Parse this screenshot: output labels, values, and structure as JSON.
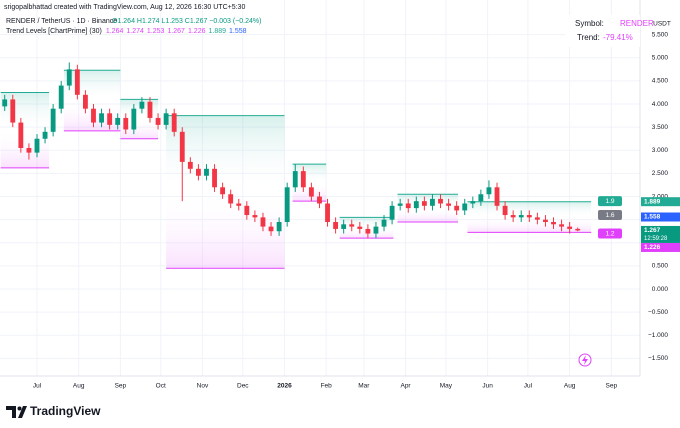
{
  "header": {
    "credit": "srigopalbhattad created with TradingView.com, Aug 12, 2026 16:30 UTC+5:30",
    "symbol_line": "RENDER / TetherUS · 1D · Binance",
    "ohlc_line": "O1.264 H1.274 L1.253 C1.267 −0.003 (−0.24%)",
    "indicator_name": "Trend Levels [ChartPrime] (30)",
    "indicator_values": [
      1.264,
      1.274,
      1.253,
      1.267,
      1.226,
      1.889,
      1.558
    ],
    "indicator_colors": [
      "#e040fb",
      "#e040fb",
      "#e040fb",
      "#e040fb",
      "#e040fb",
      "#22ab94",
      "#2962ff"
    ],
    "info_symbol_label": "Symbol:",
    "info_symbol": "RENDER",
    "info_trend_label": "Trend:",
    "info_trend": "-79.41%",
    "footer_brand": "TradingView"
  },
  "chart_data": {
    "type": "candlestick",
    "axis_unit": "USDT",
    "up_color": "#089981",
    "down_color": "#f23645",
    "grid": true,
    "xlim": [
      -27.5,
      448.3
    ],
    "xticks": [
      {
        "value": 0,
        "label": "Jul"
      },
      {
        "value": 31,
        "label": "Aug"
      },
      {
        "value": 62,
        "label": "Sep"
      },
      {
        "value": 92,
        "label": "Oct"
      },
      {
        "value": 123,
        "label": "Nov"
      },
      {
        "value": 153,
        "label": "Dec"
      },
      {
        "value": 184,
        "label": "2026"
      },
      {
        "value": 215,
        "label": "Feb"
      },
      {
        "value": 243,
        "label": "Mar"
      },
      {
        "value": 274,
        "label": "Apr"
      },
      {
        "value": 304,
        "label": "May"
      },
      {
        "value": 335,
        "label": "Jun"
      },
      {
        "value": 365,
        "label": "Jul"
      },
      {
        "value": 396,
        "label": "Aug"
      },
      {
        "value": 427,
        "label": "Sep"
      }
    ],
    "ylim": [
      -1.88,
      6.25
    ],
    "yticks": [
      {
        "value": 5.5,
        "label": "5.500"
      },
      {
        "value": 5,
        "label": "5.000"
      },
      {
        "value": 4.5,
        "label": "4.500"
      },
      {
        "value": 4,
        "label": "4.000"
      },
      {
        "value": 3.5,
        "label": "3.500"
      },
      {
        "value": 3,
        "label": "3.000"
      },
      {
        "value": 2.5,
        "label": "2.500"
      },
      {
        "value": 2,
        "label": "2.000"
      },
      {
        "value": 1.5,
        "label": "1.500"
      },
      {
        "value": 1,
        "label": "1.000"
      },
      {
        "value": 0.5,
        "label": "0.500"
      },
      {
        "value": 0,
        "label": "0.000"
      },
      {
        "value": -0.5,
        "label": "−0.500"
      },
      {
        "value": -1,
        "label": "−1.000"
      },
      {
        "value": -1.5,
        "label": "−1.500"
      }
    ],
    "x": [
      -24,
      -18,
      -12,
      -6,
      0,
      6,
      12,
      18,
      24,
      30,
      36,
      42,
      48,
      54,
      60,
      66,
      72,
      78,
      84,
      90,
      96,
      102,
      108,
      114,
      120,
      126,
      132,
      138,
      144,
      150,
      156,
      162,
      168,
      174,
      180,
      186,
      192,
      198,
      204,
      210,
      216,
      222,
      228,
      234,
      240,
      246,
      252,
      258,
      264,
      270,
      276,
      282,
      288,
      294,
      300,
      306,
      312,
      318,
      324,
      330,
      336,
      342,
      348,
      354,
      360,
      366,
      372,
      378,
      384,
      390,
      396,
      402
    ],
    "open": [
      3.95,
      4.1,
      3.6,
      3.05,
      2.95,
      3.25,
      3.4,
      3.9,
      4.4,
      4.75,
      4.2,
      3.9,
      3.6,
      3.8,
      3.55,
      3.7,
      3.45,
      3.9,
      4.05,
      3.7,
      3.55,
      3.8,
      3.4,
      2.75,
      2.6,
      2.45,
      2.6,
      2.2,
      2.05,
      1.85,
      1.8,
      1.6,
      1.55,
      1.35,
      1.25,
      1.45,
      2.2,
      2.55,
      2.2,
      2.0,
      1.85,
      1.45,
      1.3,
      1.4,
      1.35,
      1.3,
      1.2,
      1.35,
      1.5,
      1.8,
      1.85,
      1.75,
      1.9,
      1.8,
      1.95,
      1.85,
      1.8,
      1.7,
      1.85,
      1.9,
      2.05,
      2.2,
      1.8,
      1.6,
      1.55,
      1.6,
      1.55,
      1.5,
      1.45,
      1.4,
      1.35,
      1.3
    ],
    "high": [
      4.2,
      4.2,
      3.7,
      3.15,
      3.35,
      3.5,
      4.0,
      4.5,
      4.9,
      4.85,
      4.3,
      4.0,
      3.9,
      3.9,
      3.8,
      3.8,
      4.0,
      4.15,
      4.15,
      3.8,
      3.9,
      3.9,
      3.5,
      2.85,
      2.7,
      2.7,
      2.7,
      2.3,
      2.15,
      1.95,
      1.9,
      1.7,
      1.65,
      1.45,
      1.55,
      2.3,
      2.7,
      2.65,
      2.3,
      2.1,
      1.95,
      1.55,
      1.5,
      1.5,
      1.45,
      1.4,
      1.45,
      1.6,
      1.9,
      1.95,
      1.95,
      2.0,
      2.0,
      2.05,
      2.05,
      1.95,
      1.9,
      1.95,
      2.0,
      2.15,
      2.35,
      2.3,
      1.9,
      1.7,
      1.7,
      1.7,
      1.65,
      1.6,
      1.55,
      1.5,
      1.45,
      1.33
    ],
    "low": [
      3.85,
      3.5,
      2.95,
      2.8,
      2.85,
      3.15,
      3.3,
      3.8,
      4.3,
      4.1,
      3.8,
      3.5,
      3.5,
      3.45,
      3.45,
      3.35,
      3.35,
      3.8,
      3.6,
      3.45,
      3.45,
      3.3,
      1.9,
      2.5,
      2.35,
      2.35,
      2.1,
      1.95,
      1.75,
      1.7,
      1.5,
      1.45,
      1.25,
      1.15,
      1.15,
      1.35,
      2.1,
      2.1,
      1.9,
      1.75,
      1.35,
      1.2,
      1.2,
      1.25,
      1.2,
      1.1,
      1.1,
      1.25,
      1.4,
      1.7,
      1.65,
      1.65,
      1.7,
      1.7,
      1.75,
      1.7,
      1.6,
      1.6,
      1.75,
      1.8,
      1.95,
      1.7,
      1.5,
      1.45,
      1.45,
      1.45,
      1.4,
      1.35,
      1.3,
      1.25,
      1.2,
      1.25
    ],
    "close": [
      4.1,
      3.6,
      3.05,
      2.95,
      3.25,
      3.4,
      3.9,
      4.4,
      4.75,
      4.2,
      3.9,
      3.6,
      3.8,
      3.55,
      3.7,
      3.45,
      3.9,
      4.05,
      3.7,
      3.55,
      3.8,
      3.4,
      2.75,
      2.6,
      2.45,
      2.6,
      2.2,
      2.05,
      1.85,
      1.8,
      1.6,
      1.55,
      1.35,
      1.25,
      1.45,
      2.2,
      2.55,
      2.2,
      2.0,
      1.85,
      1.45,
      1.3,
      1.4,
      1.35,
      1.3,
      1.2,
      1.35,
      1.5,
      1.8,
      1.85,
      1.75,
      1.9,
      1.8,
      1.95,
      1.85,
      1.8,
      1.7,
      1.85,
      1.9,
      2.05,
      2.2,
      1.8,
      1.6,
      1.55,
      1.6,
      1.55,
      1.5,
      1.45,
      1.4,
      1.35,
      1.3,
      1.267
    ],
    "zones": [
      {
        "x": [
          -27,
          9
        ],
        "top": 4.25,
        "bottom": 2.62
      },
      {
        "x": [
          20,
          62
        ],
        "top": 4.73,
        "bottom": 3.42
      },
      {
        "x": [
          62,
          90
        ],
        "top": 4.1,
        "bottom": 3.25
      },
      {
        "x": [
          96,
          184
        ],
        "top": 3.75,
        "bottom": 0.45
      },
      {
        "x": [
          190,
          215
        ],
        "top": 2.7,
        "bottom": 1.9
      },
      {
        "x": [
          225,
          265
        ],
        "top": 1.55,
        "bottom": 1.1
      },
      {
        "x": [
          268,
          313
        ],
        "top": 2.05,
        "bottom": 1.45
      },
      {
        "x": [
          320,
          412
        ],
        "top": 1.889,
        "bottom": 1.226
      }
    ],
    "top_color": "#22ab94",
    "bottom_color": "#e040fb",
    "level_labels": {
      "values": [
        1.9,
        1.6,
        1.2
      ],
      "colors": [
        "#22ab94",
        "#787b86",
        "#e040fb"
      ]
    },
    "price_tags": {
      "values": [
        1.889,
        1.558,
        1.267,
        1.226
      ],
      "colors": [
        "#22ab94",
        "#2962ff",
        "#089981",
        "#e040fb"
      ]
    },
    "countdown": "12:59:28"
  }
}
